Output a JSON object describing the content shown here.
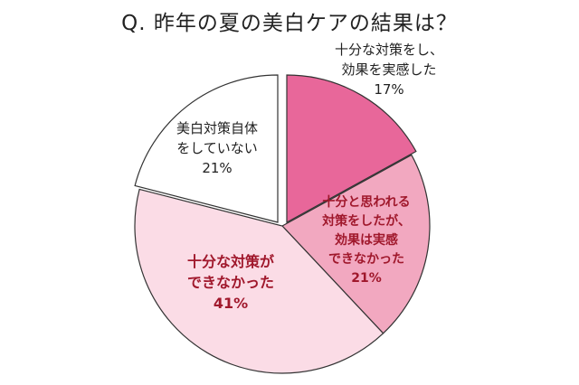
{
  "chart_data": {
    "type": "pie",
    "title": "Q. 昨年の夏の美白ケアの結果は？",
    "slices": [
      {
        "lines": [
          "十分な対策をし、",
          "効果を実感した",
          "17%"
        ],
        "value": 17,
        "color": "#e8679a",
        "text_color": "#222222",
        "exploded": true
      },
      {
        "lines": [
          "十分と思われる",
          "対策をしたが、",
          "効果は実感",
          "できなかった",
          "21%"
        ],
        "value": 21,
        "color": "#f2a8c0",
        "text_color": "#a0182c",
        "exploded": false
      },
      {
        "lines": [
          "十分な対策が",
          "できなかった",
          "41%"
        ],
        "value": 41,
        "color": "#fbdce6",
        "text_color": "#a0182c",
        "exploded": false
      },
      {
        "lines": [
          "美白対策自体",
          "をしていない",
          "21%"
        ],
        "value": 21,
        "color": "#ffffff",
        "text_color": "#222222",
        "exploded": true
      }
    ]
  }
}
